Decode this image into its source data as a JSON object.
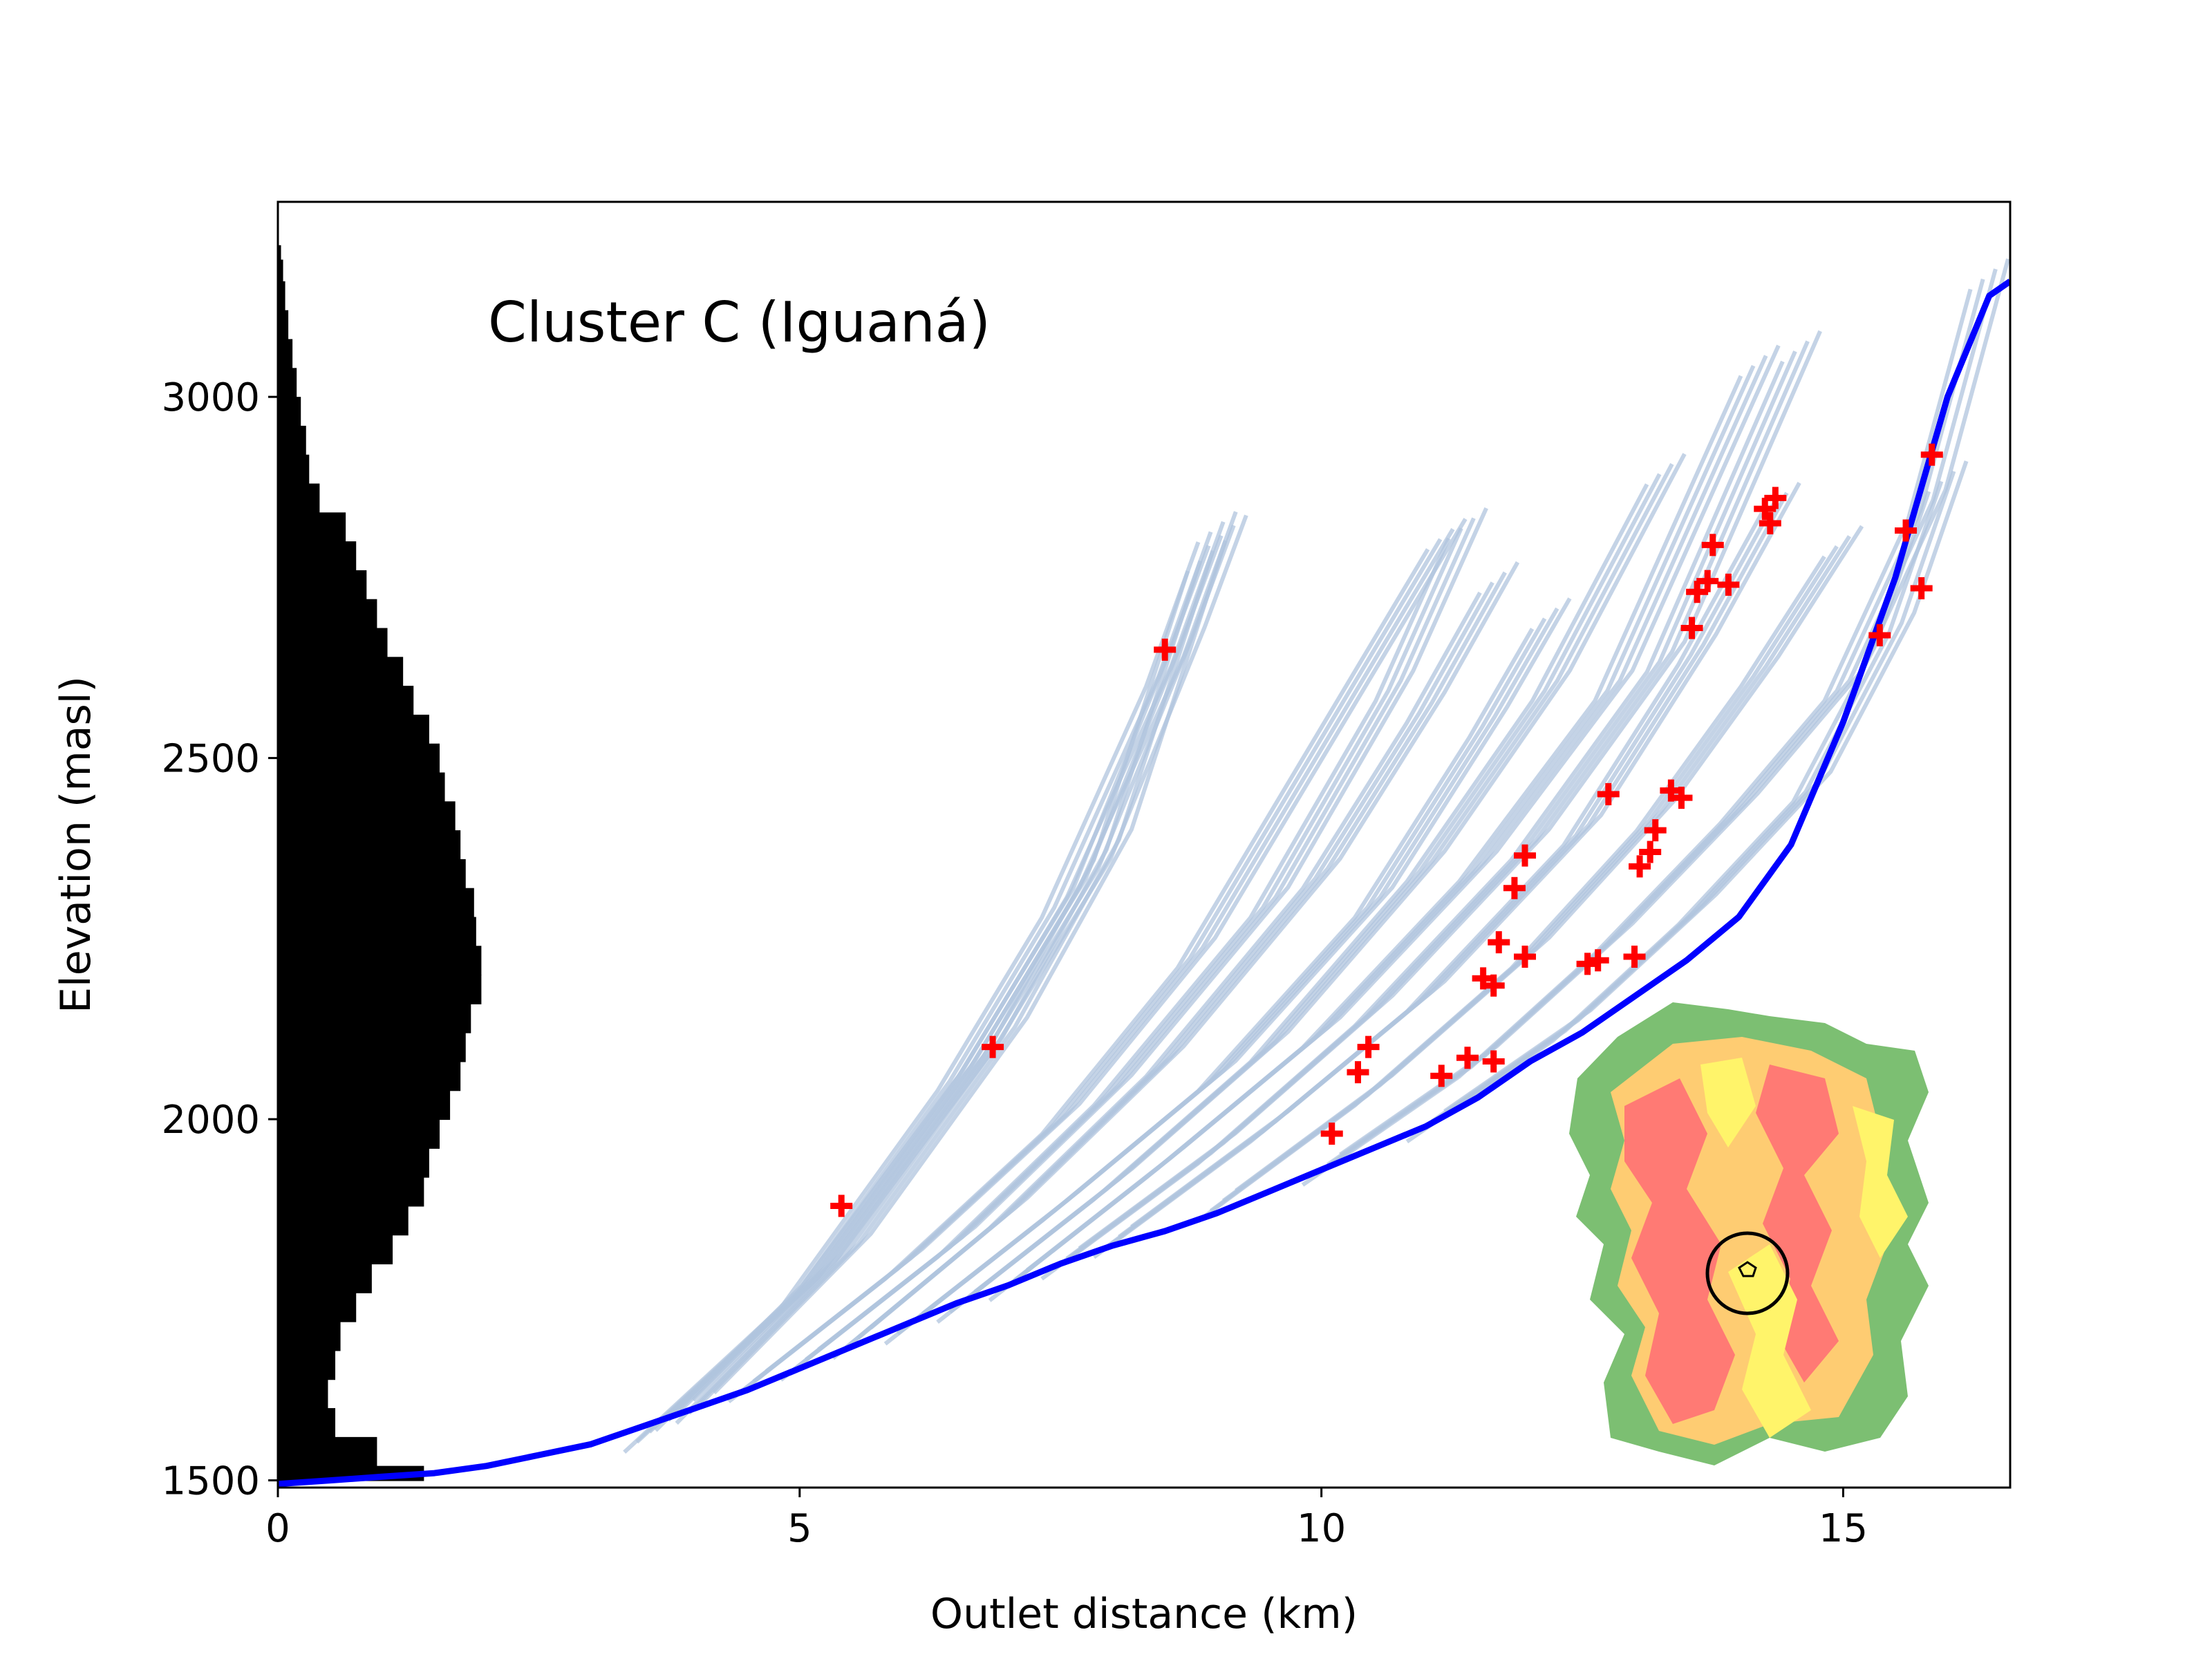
{
  "chart_data": {
    "type": "line",
    "title": "Cluster C (Iguaná)",
    "xlabel": "Outlet distance (km)",
    "ylabel": "Elevation (masl)",
    "xlim": [
      0,
      16.6
    ],
    "ylim": [
      1490,
      3270
    ],
    "xticks": [
      0,
      5,
      10,
      15
    ],
    "yticks": [
      1500,
      2000,
      2500,
      3000
    ],
    "grid": false,
    "colors": {
      "main_profile": "#0000ff",
      "tributary_profiles": "#b0c4de",
      "points": "#ff0000",
      "hypsometry": "#000000"
    },
    "main_profile": {
      "x": [
        0,
        0.5,
        1,
        1.5,
        2,
        2.5,
        3,
        3.5,
        4,
        4.5,
        5,
        5.5,
        6,
        6.5,
        7,
        7.5,
        8,
        8.5,
        9,
        9.5,
        10,
        10.5,
        11,
        11.5,
        12,
        12.5,
        13,
        13.5,
        14,
        14.5,
        15,
        15.5,
        15.8,
        16,
        16.2,
        16.4,
        16.6
      ],
      "y": [
        1495,
        1500,
        1505,
        1510,
        1520,
        1535,
        1550,
        1575,
        1600,
        1625,
        1655,
        1685,
        1715,
        1745,
        1770,
        1800,
        1825,
        1845,
        1870,
        1900,
        1930,
        1960,
        1990,
        2030,
        2080,
        2120,
        2170,
        2220,
        2280,
        2380,
        2550,
        2750,
        2900,
        3000,
        3070,
        3140,
        3160
      ]
    },
    "tributary_profiles": [
      {
        "x": [
          3.5,
          5,
          6.5,
          7.5,
          8.5,
          9
        ],
        "y": [
          1560,
          1760,
          2060,
          2300,
          2620,
          2820
        ]
      },
      {
        "x": [
          3.8,
          5.2,
          6.7,
          7.8,
          8.7,
          9.1
        ],
        "y": [
          1590,
          1790,
          2080,
          2340,
          2660,
          2815
        ]
      },
      {
        "x": [
          4,
          5.5,
          7,
          8,
          8.9
        ],
        "y": [
          1600,
          1820,
          2120,
          2380,
          2780
        ]
      },
      {
        "x": [
          4.5,
          6,
          7.5,
          8.8,
          10,
          11.2
        ],
        "y": [
          1630,
          1800,
          2000,
          2230,
          2520,
          2810
        ]
      },
      {
        "x": [
          5,
          6.5,
          8,
          9.5,
          10.7,
          11.4
        ],
        "y": [
          1660,
          1830,
          2040,
          2300,
          2600,
          2825
        ]
      },
      {
        "x": [
          5.5,
          7,
          8.5,
          10,
          11,
          11.7
        ],
        "y": [
          1690,
          1870,
          2080,
          2340,
          2570,
          2750
        ]
      },
      {
        "x": [
          6,
          7.5,
          9,
          10.5,
          11.6,
          12.2
        ],
        "y": [
          1710,
          1880,
          2060,
          2300,
          2550,
          2700
        ]
      },
      {
        "x": [
          6.5,
          8,
          9.5,
          11,
          12.2,
          13.3
        ],
        "y": [
          1740,
          1910,
          2100,
          2350,
          2600,
          2900
        ]
      },
      {
        "x": [
          7,
          8.5,
          10,
          11.5,
          12.8,
          14.2
        ],
        "y": [
          1770,
          1940,
          2120,
          2350,
          2600,
          3050
        ]
      },
      {
        "x": [
          7.5,
          9,
          10.5,
          12,
          13.3,
          14.6
        ],
        "y": [
          1800,
          1960,
          2150,
          2380,
          2640,
          3070
        ]
      },
      {
        "x": [
          8,
          9.5,
          11,
          12.5,
          13.6,
          14.4
        ],
        "y": [
          1830,
          1990,
          2170,
          2400,
          2650,
          2860
        ]
      },
      {
        "x": [
          9,
          10.5,
          12,
          13.2,
          14.2,
          15
        ],
        "y": [
          1880,
          2040,
          2230,
          2420,
          2620,
          2800
        ]
      },
      {
        "x": [
          10,
          11.5,
          12.8,
          14,
          15,
          15.8,
          16.4
        ],
        "y": [
          1930,
          2080,
          2250,
          2430,
          2600,
          2850,
          3170
        ]
      },
      {
        "x": [
          11,
          12.4,
          13.6,
          14.7,
          15.5,
          16
        ],
        "y": [
          1990,
          2130,
          2290,
          2460,
          2680,
          2890
        ]
      }
    ],
    "points": [
      {
        "x": 5.4,
        "y": 1880
      },
      {
        "x": 6.85,
        "y": 2100
      },
      {
        "x": 8.5,
        "y": 2650
      },
      {
        "x": 10.1,
        "y": 1980
      },
      {
        "x": 10.35,
        "y": 2065
      },
      {
        "x": 10.45,
        "y": 2100
      },
      {
        "x": 11.15,
        "y": 2060
      },
      {
        "x": 11.4,
        "y": 2085
      },
      {
        "x": 11.65,
        "y": 2080
      },
      {
        "x": 11.55,
        "y": 2195
      },
      {
        "x": 11.65,
        "y": 2185
      },
      {
        "x": 11.7,
        "y": 2245
      },
      {
        "x": 11.95,
        "y": 2225
      },
      {
        "x": 11.85,
        "y": 2320
      },
      {
        "x": 11.95,
        "y": 2365
      },
      {
        "x": 12.55,
        "y": 2215
      },
      {
        "x": 12.65,
        "y": 2220
      },
      {
        "x": 13.0,
        "y": 2225
      },
      {
        "x": 12.75,
        "y": 2450
      },
      {
        "x": 13.05,
        "y": 2350
      },
      {
        "x": 13.15,
        "y": 2370
      },
      {
        "x": 13.2,
        "y": 2400
      },
      {
        "x": 13.35,
        "y": 2455
      },
      {
        "x": 13.45,
        "y": 2445
      },
      {
        "x": 13.55,
        "y": 2680
      },
      {
        "x": 13.6,
        "y": 2730
      },
      {
        "x": 13.7,
        "y": 2745
      },
      {
        "x": 13.75,
        "y": 2795
      },
      {
        "x": 13.9,
        "y": 2740
      },
      {
        "x": 14.25,
        "y": 2845
      },
      {
        "x": 14.35,
        "y": 2860
      },
      {
        "x": 14.3,
        "y": 2825
      },
      {
        "x": 15.35,
        "y": 2670
      },
      {
        "x": 15.6,
        "y": 2815
      },
      {
        "x": 15.75,
        "y": 2735
      },
      {
        "x": 15.85,
        "y": 2920
      }
    ],
    "hypsometry": {
      "elevation": [
        1500,
        1520,
        1560,
        1600,
        1640,
        1680,
        1720,
        1760,
        1800,
        1840,
        1880,
        1920,
        1960,
        2000,
        2040,
        2080,
        2120,
        2160,
        2200,
        2240,
        2280,
        2320,
        2360,
        2400,
        2440,
        2480,
        2520,
        2560,
        2600,
        2640,
        2680,
        2720,
        2760,
        2800,
        2840,
        2880,
        2920,
        2960,
        3000,
        3040,
        3080,
        3120,
        3160,
        3190
      ],
      "width_km": [
        1.4,
        0.95,
        0.55,
        0.48,
        0.55,
        0.6,
        0.75,
        0.9,
        1.1,
        1.25,
        1.4,
        1.45,
        1.55,
        1.65,
        1.75,
        1.8,
        1.85,
        1.95,
        1.95,
        1.9,
        1.88,
        1.8,
        1.75,
        1.7,
        1.6,
        1.55,
        1.45,
        1.3,
        1.2,
        1.05,
        0.95,
        0.85,
        0.75,
        0.65,
        0.4,
        0.3,
        0.27,
        0.22,
        0.18,
        0.14,
        0.1,
        0.07,
        0.05,
        0.03
      ]
    }
  }
}
